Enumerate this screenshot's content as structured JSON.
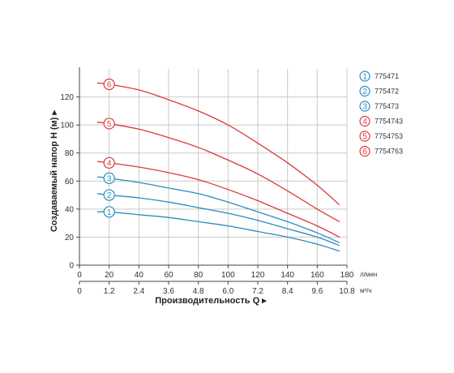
{
  "chart_data": {
    "type": "line",
    "ylabel": "Создаваемый напор H (м) ▸",
    "xlabel": "Производительность Q ▸",
    "x_unit_top": "л/мин",
    "x_unit_bottom": "м³/ч",
    "xlim": [
      0,
      180
    ],
    "ylim": [
      0,
      140
    ],
    "x_ticks": [
      0,
      20,
      40,
      60,
      80,
      100,
      120,
      140,
      160,
      180
    ],
    "x_ticks_m3h": [
      "0",
      "1.2",
      "2.4",
      "3.6",
      "4.8",
      "6.0",
      "7.2",
      "8.4",
      "9.6",
      "10.8"
    ],
    "y_ticks": [
      0,
      20,
      40,
      60,
      80,
      100,
      120
    ],
    "grid": true,
    "legend_position": "right",
    "series": [
      {
        "name": "775471",
        "badge": "1",
        "color": "#2b8cbf",
        "x": [
          12,
          20,
          40,
          60,
          80,
          100,
          120,
          140,
          160,
          175
        ],
        "y": [
          38,
          38,
          36,
          34,
          31,
          28,
          24,
          20,
          15,
          10
        ]
      },
      {
        "name": "775472",
        "badge": "2",
        "color": "#2b8cbf",
        "x": [
          12,
          20,
          40,
          60,
          80,
          100,
          120,
          140,
          160,
          175
        ],
        "y": [
          51,
          50,
          48,
          45,
          41,
          37,
          32,
          26,
          20,
          14
        ]
      },
      {
        "name": "775473",
        "badge": "3",
        "color": "#2b8cbf",
        "x": [
          12,
          20,
          40,
          60,
          80,
          100,
          120,
          140,
          160,
          175
        ],
        "y": [
          63,
          62,
          59,
          55,
          51,
          45,
          38,
          31,
          23,
          16
        ]
      },
      {
        "name": "7754743",
        "badge": "4",
        "color": "#d93a3a",
        "x": [
          12,
          20,
          40,
          60,
          80,
          100,
          120,
          140,
          160,
          175
        ],
        "y": [
          74,
          73,
          70,
          66,
          61,
          54,
          46,
          37,
          28,
          20
        ]
      },
      {
        "name": "7754753",
        "badge": "5",
        "color": "#d93a3a",
        "x": [
          12,
          20,
          40,
          60,
          80,
          100,
          120,
          140,
          160,
          175
        ],
        "y": [
          102,
          101,
          97,
          91,
          84,
          75,
          65,
          53,
          40,
          31
        ]
      },
      {
        "name": "7754763",
        "badge": "6",
        "color": "#d93a3a",
        "x": [
          12,
          20,
          40,
          60,
          80,
          100,
          120,
          140,
          160,
          175
        ],
        "y": [
          130,
          129,
          125,
          118,
          110,
          100,
          87,
          73,
          57,
          43
        ]
      }
    ]
  }
}
